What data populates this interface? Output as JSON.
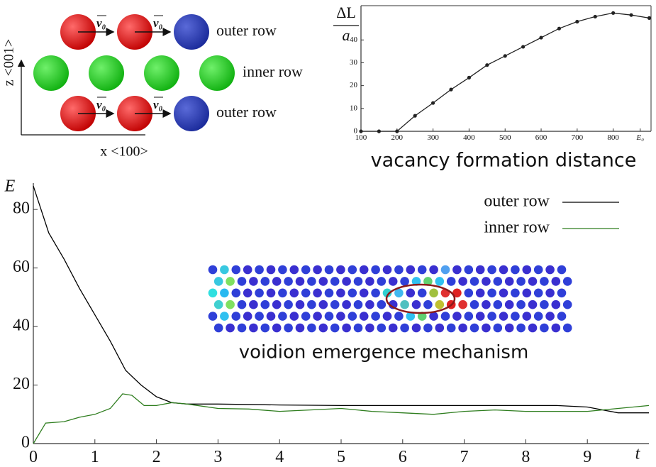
{
  "diagram": {
    "row_labels": [
      "outer row",
      "inner row",
      "outer row"
    ],
    "velocity_label": "v₀",
    "z_axis_label": "z <001>",
    "x_axis_label": "x <100>"
  },
  "chart_data": [
    {
      "type": "line",
      "xlabel": "vacancy formation distance",
      "ylabel": [
        "ΔL",
        "a"
      ],
      "xlim": [
        100,
        905
      ],
      "ylim": [
        0,
        55
      ],
      "xticks": [
        100,
        200,
        300,
        400,
        500,
        600,
        700,
        800,
        {
          "value": 875,
          "label": "E₀"
        }
      ],
      "yticks": [
        0,
        10,
        20,
        30,
        40
      ],
      "markers": true,
      "series": [
        {
          "name": null,
          "color": "#222222",
          "x": [
            100,
            150,
            200,
            250,
            300,
            350,
            400,
            450,
            500,
            550,
            600,
            650,
            700,
            750,
            800,
            850,
            900
          ],
          "values": [
            0,
            0,
            0,
            6.8,
            12.4,
            18.3,
            23.5,
            29,
            33,
            37,
            41,
            45,
            48,
            50.2,
            51.8,
            50.9,
            49.6
          ]
        }
      ]
    },
    {
      "type": "line",
      "xlabel": "t",
      "ylabel": "E",
      "xlim": [
        0,
        10
      ],
      "ylim": [
        0,
        89
      ],
      "xticks": [
        0,
        1,
        2,
        3,
        4,
        5,
        6,
        7,
        8,
        9
      ],
      "yticks": [
        0,
        20,
        40,
        60,
        80
      ],
      "legend": "upper right",
      "annotation": "voidion emergence mechanism",
      "series": [
        {
          "name": "outer row",
          "color": "#000000",
          "x": [
            0,
            0.25,
            0.5,
            0.75,
            1,
            1.25,
            1.5,
            1.75,
            2,
            2.25,
            2.5,
            3,
            4,
            5,
            6,
            7,
            8,
            8.5,
            9,
            9.5,
            10
          ],
          "values": [
            88,
            72,
            63,
            53,
            44,
            35,
            25,
            20,
            16,
            14,
            13.5,
            13.5,
            13.2,
            13,
            13,
            13,
            13,
            13,
            12.5,
            10.5,
            10.5
          ]
        },
        {
          "name": "inner row",
          "color": "#2e7d1e",
          "x": [
            0,
            0.2,
            0.5,
            0.75,
            1,
            1.25,
            1.45,
            1.6,
            1.8,
            2,
            2.25,
            2.5,
            3,
            3.5,
            4,
            4.5,
            5,
            5.5,
            6,
            6.5,
            7,
            7.5,
            8,
            8.5,
            9,
            9.5,
            10
          ],
          "values": [
            0,
            7,
            7.5,
            9,
            10,
            12,
            17,
            16.5,
            13,
            13,
            14,
            13.5,
            12,
            11.8,
            11,
            11.5,
            12,
            11,
            10.5,
            10,
            11,
            11.5,
            11,
            11,
            11,
            12,
            13
          ]
        }
      ]
    }
  ]
}
